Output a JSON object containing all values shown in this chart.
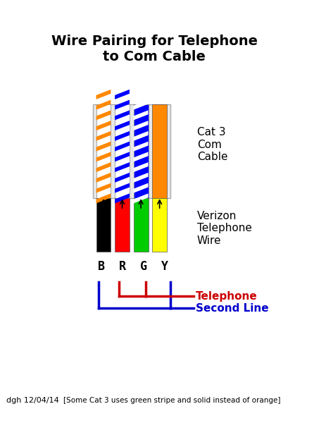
{
  "title": "Wire Pairing for Telephone\nto Com Cable",
  "title_fontsize": 14,
  "background_color": "#ffffff",
  "cat3_label": "Cat 3\nCom\nCable",
  "verizon_label": "Verizon\nTelephone\nWire",
  "brgy_label": "B  R  G  Y",
  "telephone_label": "Telephone",
  "second_line_label": "Second Line",
  "footer_left": "dgh 12/04/14",
  "footer_right": "[Some Cat 3 uses green stripe and solid instead of orange]",
  "wire_colors": {
    "black": "#000000",
    "red": "#ff0000",
    "green": "#00cc00",
    "yellow": "#ffff00",
    "orange": "#ff8800",
    "blue": "#0000ff",
    "white": "#ffffff"
  },
  "telephone_color": "#cc0000",
  "second_line_color": "#0000cc"
}
